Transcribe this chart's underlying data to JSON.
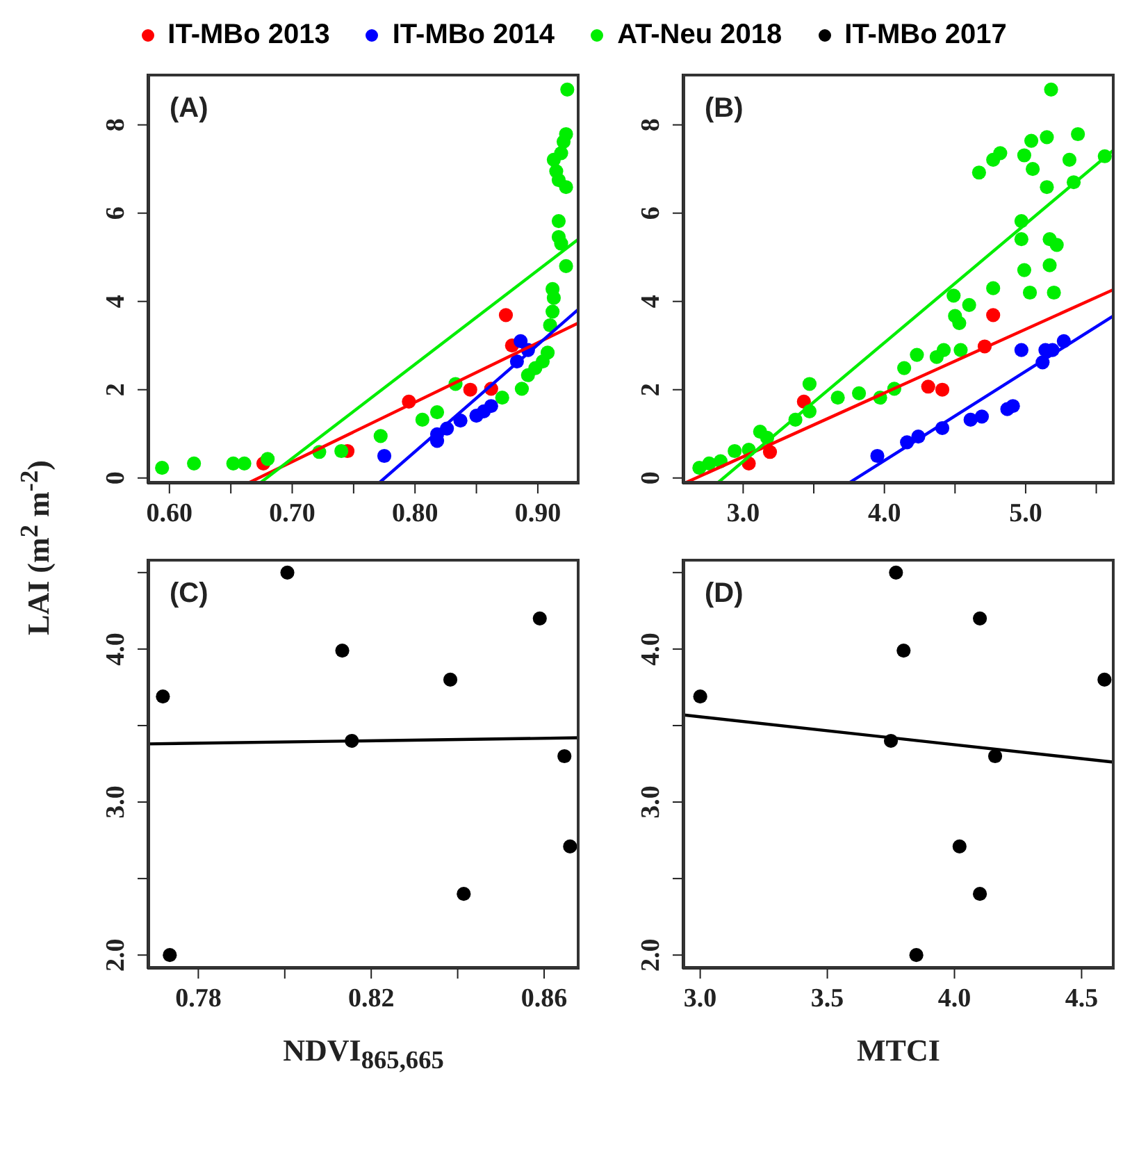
{
  "chart_data": [
    {
      "type": "scatter",
      "annotations": [
        "(A)"
      ],
      "ylabel": "LAI (m$^{2}$ m$^{-2}$)",
      "legend": "top",
      "marker": "circle",
      "xlim": [
        0.582,
        0.934
      ],
      "xticks": [
        {
          "value": 0.6,
          "label": "0.60"
        },
        {
          "value": 0.65,
          "label": null
        },
        {
          "value": 0.7,
          "label": "0.70"
        },
        {
          "value": 0.75,
          "label": null
        },
        {
          "value": 0.8,
          "label": "0.80"
        },
        {
          "value": 0.85,
          "label": null
        },
        {
          "value": 0.9,
          "label": "0.90"
        }
      ],
      "ylim": [
        -0.13,
        9.16
      ],
      "yticks": [
        0,
        2,
        4,
        6,
        8
      ],
      "series": [
        {
          "name": "IT-MBo 2013",
          "color": "#ff0000",
          "x": [
            0.6765,
            0.745,
            0.795,
            0.845,
            0.862,
            0.874,
            0.879
          ],
          "values": [
            0.33,
            0.61,
            1.73,
            2.0,
            2.02,
            3.69,
            3.0
          ]
        },
        {
          "name": "IT-MBo 2014",
          "color": "#0000ff",
          "x": [
            0.775,
            0.818,
            0.818,
            0.826,
            0.837,
            0.85,
            0.856,
            0.862,
            0.883,
            0.886,
            0.892
          ],
          "values": [
            0.5,
            0.84,
            0.99,
            1.12,
            1.3,
            1.41,
            1.51,
            1.63,
            2.64,
            3.1,
            2.9
          ]
        },
        {
          "name": "AT-Neu 2018",
          "color": "#00ee00",
          "x": [
            0.594,
            0.62,
            0.652,
            0.661,
            0.68,
            0.722,
            0.74,
            0.772,
            0.806,
            0.818,
            0.833,
            0.871,
            0.887,
            0.892,
            0.898,
            0.904,
            0.908,
            0.91,
            0.912,
            0.913,
            0.912,
            0.923,
            0.919,
            0.917,
            0.917,
            0.923,
            0.917,
            0.915,
            0.913,
            0.919,
            0.921,
            0.923,
            0.924
          ],
          "values": [
            0.23,
            0.33,
            0.33,
            0.33,
            0.43,
            0.59,
            0.61,
            0.95,
            1.32,
            1.49,
            2.13,
            1.82,
            2.02,
            2.33,
            2.49,
            2.64,
            2.84,
            3.46,
            3.77,
            4.08,
            4.28,
            4.8,
            5.31,
            5.46,
            5.82,
            6.59,
            6.75,
            6.95,
            7.21,
            7.36,
            7.62,
            7.79,
            8.8
          ]
        },
        {
          "type": "line",
          "marker": "none",
          "color": "#ff0000",
          "x": [
            0.663,
            0.933
          ],
          "values": [
            -0.13,
            3.51
          ]
        },
        {
          "type": "line",
          "marker": "none",
          "color": "#0000ff",
          "x": [
            0.77,
            0.933
          ],
          "values": [
            -0.13,
            3.82
          ]
        },
        {
          "type": "line",
          "marker": "none",
          "color": "#00ee00",
          "x": [
            0.673,
            0.933
          ],
          "values": [
            -0.13,
            5.41
          ]
        }
      ]
    },
    {
      "type": "scatter",
      "annotations": [
        "(B)"
      ],
      "marker": "circle",
      "xlim": [
        2.57,
        5.63
      ],
      "xticks": [
        {
          "value": 3,
          "label": "3.0"
        },
        {
          "value": 3.5,
          "label": null
        },
        {
          "value": 4,
          "label": "4.0"
        },
        {
          "value": 4.5,
          "label": null
        },
        {
          "value": 5,
          "label": "5.0"
        },
        {
          "value": 5.5,
          "label": null
        }
      ],
      "ylim": [
        -0.13,
        9.16
      ],
      "yticks": [
        0,
        2,
        4,
        6,
        8
      ],
      "series": [
        {
          "color": "#ff0000",
          "x": [
            3.04,
            3.19,
            3.43,
            4.31,
            4.41,
            4.71,
            4.77
          ],
          "values": [
            0.33,
            0.59,
            1.73,
            2.07,
            2.0,
            2.98,
            3.69
          ]
        },
        {
          "color": "#0000ff",
          "x": [
            3.95,
            4.16,
            4.24,
            4.41,
            4.61,
            4.69,
            4.87,
            4.91,
            4.97,
            5.12,
            5.14,
            5.19,
            5.27
          ],
          "values": [
            0.5,
            0.81,
            0.94,
            1.13,
            1.32,
            1.39,
            1.56,
            1.63,
            2.9,
            2.62,
            2.9,
            2.9,
            3.1
          ]
        },
        {
          "color": "#00ee00",
          "x": [
            2.69,
            2.76,
            2.84,
            2.94,
            3.04,
            3.12,
            3.17,
            3.37,
            3.47,
            3.47,
            3.67,
            3.82,
            3.97,
            4.07,
            4.14,
            4.23,
            4.37,
            4.42,
            4.54,
            4.5,
            4.53,
            4.49,
            4.6,
            4.77,
            4.67,
            4.77,
            4.82,
            4.97,
            4.97,
            4.99,
            5.03,
            4.99,
            5.04,
            5.05,
            5.15,
            5.15,
            5.17,
            5.17,
            5.2,
            5.22,
            5.18,
            5.31,
            5.37,
            5.34,
            5.56
          ],
          "values": [
            0.23,
            0.33,
            0.38,
            0.61,
            0.64,
            1.05,
            0.91,
            1.32,
            1.51,
            2.13,
            1.82,
            1.92,
            1.82,
            2.02,
            2.49,
            2.79,
            2.74,
            2.9,
            2.9,
            3.67,
            3.51,
            4.13,
            3.92,
            4.3,
            6.92,
            7.21,
            7.36,
            5.82,
            5.41,
            4.71,
            4.2,
            7.31,
            7.64,
            7.0,
            7.72,
            6.59,
            5.41,
            4.82,
            4.2,
            5.28,
            8.8,
            7.21,
            7.79,
            6.7,
            7.29
          ]
        },
        {
          "type": "line",
          "marker": "none",
          "color": "#ff0000",
          "x": [
            2.59,
            5.63
          ],
          "values": [
            -0.11,
            4.28
          ]
        },
        {
          "type": "line",
          "marker": "none",
          "color": "#0000ff",
          "x": [
            3.74,
            5.63
          ],
          "values": [
            -0.13,
            3.69
          ]
        },
        {
          "type": "line",
          "marker": "none",
          "color": "#00ee00",
          "x": [
            2.82,
            5.63
          ],
          "values": [
            -0.11,
            7.45
          ]
        }
      ]
    },
    {
      "type": "scatter",
      "annotations": [
        "(C)"
      ],
      "xlabel": "NDVI$_{865,665}$",
      "legend": "top",
      "marker": "circle",
      "xlim": [
        0.7682,
        0.8682
      ],
      "xticks": [
        0.78,
        {
          "value": 0.8,
          "label": null
        },
        0.82,
        {
          "value": 0.84,
          "label": null
        },
        0.86
      ],
      "ylim": [
        1.91,
        4.59
      ],
      "yticks": [
        {
          "value": 2,
          "label": "2.0"
        },
        {
          "value": 2.5,
          "label": null
        },
        {
          "value": 3,
          "label": "3.0"
        },
        {
          "value": 3.5,
          "label": null
        },
        {
          "value": 4,
          "label": "4.0"
        },
        {
          "value": 4.5,
          "label": null
        }
      ],
      "series": [
        {
          "name": "IT-MBo 2017",
          "color": "#000000",
          "x": [
            0.7718,
            0.7734,
            0.8006,
            0.8133,
            0.8155,
            0.8383,
            0.8414,
            0.859,
            0.8647,
            0.866
          ],
          "values": [
            3.69,
            2.0,
            4.5,
            3.99,
            3.4,
            3.8,
            2.4,
            4.2,
            3.3,
            2.71
          ]
        },
        {
          "type": "line",
          "marker": "none",
          "color": "#000000",
          "x": [
            0.7682,
            0.8682
          ],
          "values": [
            3.38,
            3.42
          ]
        }
      ]
    },
    {
      "type": "scatter",
      "annotations": [
        "(D)"
      ],
      "xlabel": "MTCI",
      "marker": "circle",
      "xlim": [
        2.93,
        4.63
      ],
      "xticks": [
        {
          "value": 3,
          "label": "3.0"
        },
        3.5,
        {
          "value": 4,
          "label": "4.0"
        },
        4.5
      ],
      "ylim": [
        1.91,
        4.59
      ],
      "yticks": [
        {
          "value": 2,
          "label": "2.0"
        },
        {
          "value": 2.5,
          "label": null
        },
        {
          "value": 3,
          "label": "3.0"
        },
        {
          "value": 3.5,
          "label": null
        },
        {
          "value": 4,
          "label": "4.0"
        },
        {
          "value": 4.5,
          "label": null
        }
      ],
      "series": [
        {
          "color": "#000000",
          "x": [
            3.0,
            3.77,
            3.8,
            3.75,
            4.1,
            4.16,
            4.02,
            4.1,
            3.85,
            4.59
          ],
          "values": [
            3.69,
            4.5,
            3.99,
            3.4,
            4.2,
            3.3,
            2.71,
            2.4,
            2.0,
            3.8
          ]
        },
        {
          "type": "line",
          "marker": "none",
          "color": "#000000",
          "x": [
            2.93,
            4.63
          ],
          "values": [
            3.57,
            3.26
          ]
        }
      ]
    }
  ]
}
